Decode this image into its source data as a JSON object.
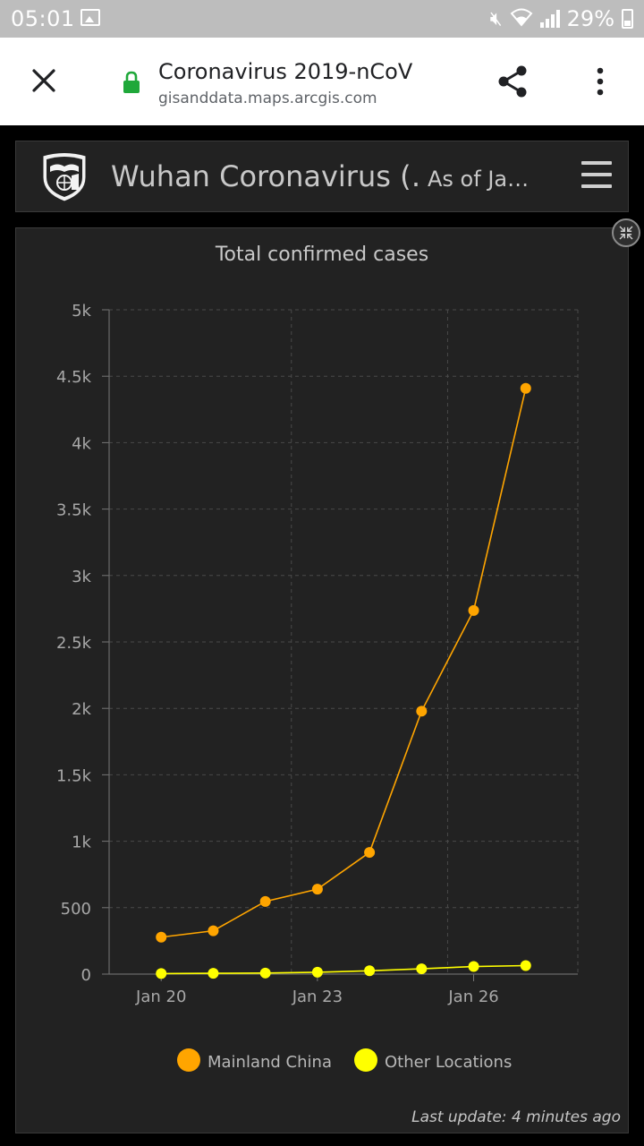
{
  "status_bar": {
    "time": "05:01",
    "battery": "29%"
  },
  "browser": {
    "page_title": "Coronavirus 2019-nCoV",
    "url": "gisanddata.maps.arcgis.com",
    "icons": [
      "close-icon",
      "lock-icon",
      "share-icon",
      "menu-dots-icon"
    ],
    "lock_color": "#1fa83a"
  },
  "app_header": {
    "title": "Wuhan Coronavirus (…",
    "subtitle": "As of Ja…"
  },
  "chart_data": {
    "type": "line",
    "title": "Total confirmed cases",
    "xlabel": "",
    "ylabel": "",
    "x": [
      "2020-01-20",
      "2020-01-21",
      "2020-01-22",
      "2020-01-23",
      "2020-01-24",
      "2020-01-25",
      "2020-01-26",
      "2020-01-27"
    ],
    "xlim": [
      "2020-01-19",
      "2020-01-28"
    ],
    "x_ticks": [
      "Jan 20",
      "Jan 23",
      "Jan 26"
    ],
    "x_tick_dates": [
      "2020-01-20",
      "2020-01-23",
      "2020-01-26"
    ],
    "ylim": [
      0,
      5000
    ],
    "y_ticks": [
      0,
      500,
      1000,
      1500,
      2000,
      2500,
      3000,
      3500,
      4000,
      4500,
      5000
    ],
    "y_tick_labels": [
      "0",
      "500",
      "1k",
      "1.5k",
      "2k",
      "2.5k",
      "3k",
      "3.5k",
      "4k",
      "4.5k",
      "5k"
    ],
    "grid": true,
    "legend": "bottom-center",
    "series": [
      {
        "name": "Mainland China",
        "color": "#ffa500",
        "values": [
          278,
          326,
          547,
          639,
          916,
          1979,
          2737,
          4409
        ]
      },
      {
        "name": "Other Locations",
        "color": "#ffff00",
        "values": [
          4,
          6,
          8,
          14,
          25,
          40,
          57,
          64
        ]
      }
    ]
  },
  "footer": {
    "last_update": "Last update: 4 minutes ago"
  }
}
